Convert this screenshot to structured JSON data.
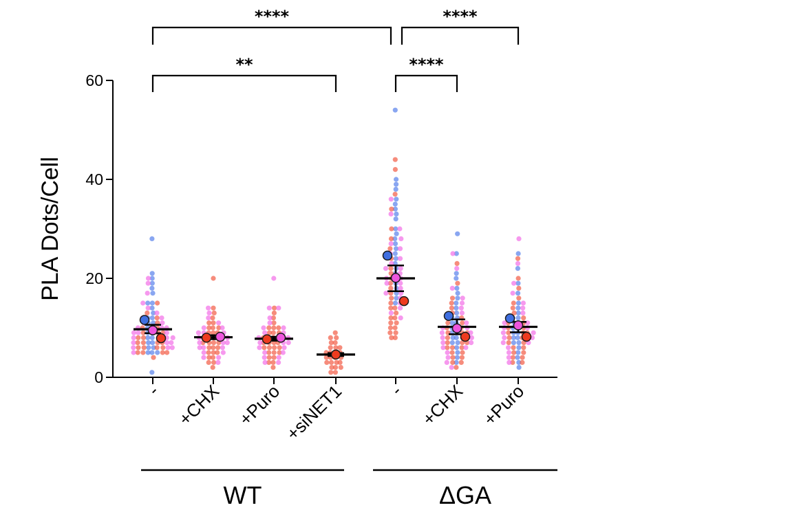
{
  "chart_data": {
    "type": "scatter",
    "title": "",
    "ylabel": "PLA Dots/Cell",
    "xlabel": "",
    "ylim": [
      0,
      60
    ],
    "yticks": [
      0,
      20,
      40,
      60
    ],
    "categories": [
      "-",
      "+CHX",
      "+Puro",
      "+siNET1",
      "-",
      "+CHX",
      "+Puro"
    ],
    "groups": [
      {
        "label": "WT",
        "categories": [
          0,
          1,
          2,
          3
        ]
      },
      {
        "label": "ΔGA",
        "categories": [
          4,
          5,
          6
        ]
      }
    ],
    "colors": {
      "rep_blue": "#3f6fe0",
      "rep_pink": "#ee55dd",
      "rep_red": "#ee3b1f",
      "point_blue": "#5b84ec",
      "point_pink": "#f272e8",
      "point_red": "#f2604a",
      "axis": "#000000"
    },
    "series": [
      {
        "category": "-",
        "group": "WT",
        "mean": 9.7,
        "sem_low": 8.9,
        "sem_high": 10.6,
        "rep_means": [
          {
            "color": "blue",
            "value": 11.6
          },
          {
            "color": "pink",
            "value": 9.5
          },
          {
            "color": "red",
            "value": 7.9
          }
        ],
        "points": {
          "blue": [
            28,
            21,
            20,
            19,
            18,
            17,
            15,
            15,
            14,
            13,
            12,
            12,
            11,
            11,
            10,
            10,
            9,
            9,
            8,
            8,
            7,
            7,
            6,
            6,
            5,
            5,
            5,
            1
          ],
          "pink": [
            20,
            19,
            17,
            15,
            14,
            13,
            12,
            12,
            11,
            11,
            10,
            10,
            10,
            9,
            9,
            9,
            8,
            8,
            8,
            7,
            7,
            7,
            6,
            6,
            6,
            5
          ],
          "red": [
            15,
            13,
            12,
            11,
            10,
            10,
            9,
            9,
            9,
            8,
            8,
            8,
            8,
            7,
            7,
            7,
            7,
            6,
            6,
            6,
            6,
            5,
            5,
            5,
            5,
            4
          ]
        }
      },
      {
        "category": "+CHX",
        "group": "WT",
        "mean": 8.1,
        "sem_low": 7.7,
        "sem_high": 8.5,
        "rep_means": [
          {
            "color": "red",
            "value": 8.0
          },
          {
            "color": "pink",
            "value": 8.2
          }
        ],
        "points": {
          "pink": [
            14,
            13,
            12,
            11,
            10,
            10,
            9,
            9,
            9,
            8,
            8,
            8,
            7,
            7,
            7,
            6,
            6,
            6,
            5,
            5,
            4,
            4,
            3
          ],
          "red": [
            20,
            14,
            13,
            12,
            11,
            11,
            10,
            10,
            10,
            9,
            9,
            9,
            8,
            8,
            8,
            8,
            7,
            7,
            7,
            7,
            6,
            6,
            6,
            5,
            5,
            5,
            4,
            4,
            3,
            3,
            2
          ]
        }
      },
      {
        "category": "+Puro",
        "group": "WT",
        "mean": 7.8,
        "sem_low": 7.4,
        "sem_high": 8.2,
        "rep_means": [
          {
            "color": "red",
            "value": 7.7
          },
          {
            "color": "pink",
            "value": 8.0
          }
        ],
        "points": {
          "pink": [
            20,
            14,
            14,
            12,
            11,
            10,
            10,
            9,
            9,
            8,
            8,
            8,
            7,
            7,
            7,
            6,
            6,
            5,
            5,
            4,
            4,
            3,
            3
          ],
          "red": [
            14,
            13,
            12,
            11,
            10,
            10,
            10,
            9,
            9,
            9,
            8,
            8,
            8,
            8,
            7,
            7,
            7,
            7,
            6,
            6,
            6,
            6,
            5,
            5,
            5,
            4,
            4,
            3,
            3,
            2
          ]
        }
      },
      {
        "category": "+siNET1",
        "group": "WT",
        "mean": 4.6,
        "sem_low": 4.3,
        "sem_high": 4.9,
        "rep_means": [
          {
            "color": "red",
            "value": 4.6
          }
        ],
        "points": {
          "red": [
            9,
            8,
            8,
            7,
            7,
            6,
            6,
            6,
            5,
            5,
            5,
            5,
            4,
            4,
            4,
            4,
            3,
            3,
            3,
            3,
            2,
            2,
            2,
            1,
            1
          ]
        }
      },
      {
        "category": "-",
        "group": "ΔGA",
        "mean": 20.0,
        "sem_low": 17.4,
        "sem_high": 22.6,
        "rep_means": [
          {
            "color": "blue",
            "value": 24.6
          },
          {
            "color": "pink",
            "value": 20.1
          },
          {
            "color": "red",
            "value": 15.4
          }
        ],
        "points": {
          "blue": [
            54,
            40,
            39,
            38,
            36,
            35,
            34,
            33,
            32,
            30,
            29,
            28,
            27,
            26,
            25,
            24,
            23,
            22,
            21,
            20,
            19,
            18,
            17,
            16,
            15
          ],
          "pink": [
            36,
            33,
            30,
            28,
            27,
            26,
            25,
            24,
            23,
            22,
            22,
            21,
            20,
            20,
            19,
            19,
            18,
            17,
            17,
            16,
            15,
            14,
            13,
            12
          ],
          "red": [
            44,
            42,
            37,
            34,
            30,
            28,
            26,
            24,
            22,
            21,
            20,
            19,
            18,
            17,
            16,
            15,
            14,
            14,
            13,
            12,
            12,
            11,
            11,
            10,
            10,
            9,
            9,
            8,
            8
          ]
        }
      },
      {
        "category": "+CHX",
        "group": "ΔGA",
        "mean": 10.2,
        "sem_low": 8.7,
        "sem_high": 11.7,
        "rep_means": [
          {
            "color": "blue",
            "value": 12.4
          },
          {
            "color": "pink",
            "value": 9.9
          },
          {
            "color": "red",
            "value": 8.2
          }
        ],
        "points": {
          "blue": [
            29,
            25,
            21,
            20,
            18,
            17,
            16,
            15,
            14,
            13,
            12,
            12,
            11,
            11,
            10,
            10,
            9,
            9,
            8,
            8,
            7,
            7,
            6,
            5,
            4,
            3
          ],
          "pink": [
            25,
            22,
            18,
            16,
            15,
            14,
            13,
            12,
            11,
            10,
            10,
            9,
            9,
            8,
            8,
            7,
            7,
            6,
            6,
            5,
            4,
            3,
            2
          ],
          "red": [
            23,
            19,
            16,
            15,
            14,
            13,
            12,
            11,
            11,
            10,
            10,
            9,
            9,
            9,
            8,
            8,
            8,
            7,
            7,
            7,
            6,
            6,
            6,
            5,
            5,
            4,
            4,
            3,
            3,
            2
          ]
        }
      },
      {
        "category": "+Puro",
        "group": "ΔGA",
        "mean": 10.2,
        "sem_low": 9.1,
        "sem_high": 11.2,
        "rep_means": [
          {
            "color": "blue",
            "value": 11.9
          },
          {
            "color": "pink",
            "value": 10.5
          },
          {
            "color": "red",
            "value": 8.2
          }
        ],
        "points": {
          "blue": [
            25,
            22,
            19,
            17,
            15,
            14,
            13,
            12,
            12,
            11,
            11,
            10,
            10,
            9,
            9,
            8,
            8,
            7,
            7,
            6,
            5,
            4,
            3,
            2
          ],
          "pink": [
            28,
            23,
            19,
            17,
            15,
            14,
            13,
            12,
            11,
            11,
            10,
            10,
            9,
            9,
            8,
            8,
            7,
            7,
            6,
            5,
            4,
            3
          ],
          "red": [
            24,
            20,
            18,
            16,
            15,
            14,
            13,
            12,
            11,
            11,
            10,
            10,
            9,
            9,
            9,
            8,
            8,
            8,
            7,
            7,
            6,
            6,
            5,
            5,
            4,
            4,
            3,
            3
          ]
        }
      }
    ],
    "significance": [
      {
        "from": 0,
        "to": 4,
        "label": "****"
      },
      {
        "from": 4,
        "to": 6,
        "label": "****"
      },
      {
        "from": 0,
        "to": 3,
        "label": "**"
      },
      {
        "from": 4,
        "to": 5,
        "label": "****"
      }
    ]
  }
}
